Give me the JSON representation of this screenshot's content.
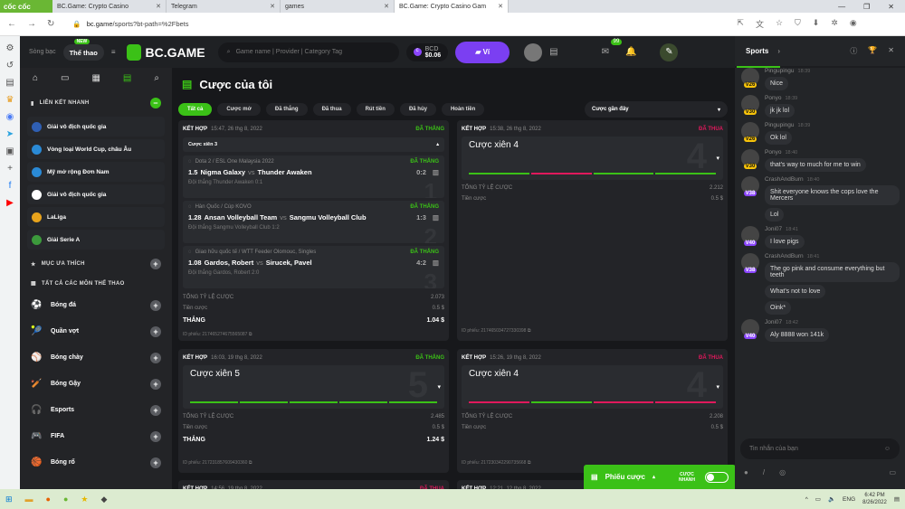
{
  "browser": {
    "brand": "cốc cốc",
    "tabs": [
      {
        "title": "BC.Game: Crypto Casino",
        "active": false
      },
      {
        "title": "Telegram",
        "active": false
      },
      {
        "title": "games",
        "active": false
      },
      {
        "title": "BC.Game: Crypto Casino Gam",
        "active": true
      }
    ],
    "url_host": "bc.game",
    "url_path": "/sports?bt-path=%2Fbets"
  },
  "topbar": {
    "casino": "Sòng bạc",
    "sports": "Thể thao",
    "new_badge": "NEW",
    "logo": "BC.GAME",
    "search_placeholder": "Game name | Provider | Category Tag",
    "currency": "BCD",
    "balance": "$0.06",
    "wallet": "Ví",
    "messages_badge": "99"
  },
  "sidebar": {
    "quick_links_title": "LIÊN KẾT NHANH",
    "quick_links": [
      {
        "label": "Giải vô địch quốc gia",
        "color": "#2f5fb3"
      },
      {
        "label": "Vòng loại World Cup, châu Âu",
        "color": "#2a8ad6"
      },
      {
        "label": "Mỹ mở rộng Đơn Nam",
        "color": "#2a8ad6"
      },
      {
        "label": "Giải vô địch quốc gia",
        "color": "#ffffff"
      },
      {
        "label": "LaLiga",
        "color": "#e8a31c"
      },
      {
        "label": "Giải Serie A",
        "color": "#3c9a3c"
      }
    ],
    "favorites_title": "MỤC ƯA THÍCH",
    "all_sports_title": "TẤT CẢ CÁC MÔN THỂ THAO",
    "sports": [
      {
        "label": "Bóng đá",
        "icon": "⚽"
      },
      {
        "label": "Quần vợt",
        "icon": "🎾"
      },
      {
        "label": "Bóng chày",
        "icon": "⚾"
      },
      {
        "label": "Bóng Gậy",
        "icon": "🏏"
      },
      {
        "label": "Esports",
        "icon": "🎧"
      },
      {
        "label": "FIFA",
        "icon": "🎮"
      },
      {
        "label": "Bóng rổ",
        "icon": "🏀"
      }
    ]
  },
  "main": {
    "title": "Cược của tôi",
    "filters": [
      "Tất cả",
      "Cược mở",
      "Đã thắng",
      "Đã thua",
      "Rút tiền",
      "Đã hủy",
      "Hoàn tiền"
    ],
    "sort": "Cược gần đây",
    "labels": {
      "combo": "KẾT HỢP",
      "total_odds": "TỔNG TỶ LỆ CƯỢC",
      "stake": "Tiền cược",
      "win": "THẮNG",
      "ticket_id": "ID phiếu:"
    },
    "card1": {
      "date": "15:47, 26 thg 8, 2022",
      "status": "ĐÃ THẮNG",
      "parlay": "Cược xiên 3",
      "legs": [
        {
          "league": "Dota 2 / ESL One Malaysia 2022",
          "status": "ĐÃ THẮNG",
          "odds": "1.5",
          "home": "Nigma Galaxy",
          "vs": "vs",
          "away": "Thunder Awaken",
          "score": "0:2",
          "pick": "Đội thắng Thunder Awaken  0:1",
          "num": "1"
        },
        {
          "league": "Hàn Quốc / Cúp KOVO",
          "status": "ĐÃ THẮNG",
          "odds": "1.28",
          "home": "Ansan Volleyball Team",
          "vs": "vs",
          "away": "Sangmu Volleyball Club",
          "score": "1:3",
          "pick": "Đội thắng Sangmu Volleyball Club  1:2",
          "num": "2"
        },
        {
          "league": "Giao hữu quốc tế / WTT Feeder Olomouc, Singles",
          "status": "ĐÃ THẮNG",
          "odds": "1.08",
          "home": "Gardos, Robert",
          "vs": "vs",
          "away": "Sirucek, Pavel",
          "score": "4:2",
          "pick": "Đội thắng Gardos, Robert  2:0",
          "num": "3"
        }
      ],
      "total_odds": "2.073",
      "stake": "0.5 $",
      "win": "1.04 $",
      "id": "217465274675565087"
    },
    "card2": {
      "date": "15:38, 26 thg 8, 2022",
      "status": "ĐÃ THUA",
      "parlay": "Cược xiên 4",
      "num": "4",
      "legs": [
        "won",
        "lost",
        "won",
        "won"
      ],
      "total_odds": "2.212",
      "stake": "0.5 $",
      "id": "217465034727330398"
    },
    "card3": {
      "date": "16:03, 19 thg 8, 2022",
      "status": "ĐÃ THẮNG",
      "parlay": "Cược xiên 5",
      "num": "5",
      "legs": [
        "won",
        "won",
        "won",
        "won",
        "won"
      ],
      "total_odds": "2.485",
      "stake": "0.5 $",
      "win": "1.24 $",
      "id": "217231857609430360"
    },
    "card4": {
      "date": "15:26, 19 thg 8, 2022",
      "status": "ĐÃ THUA",
      "parlay": "Cược xiên 4",
      "num": "4",
      "legs": [
        "lost",
        "won",
        "lost",
        "lost"
      ],
      "total_odds": "2.208",
      "stake": "0.5 $",
      "id": "217230342290735668"
    },
    "card5": {
      "date": "14:56, 19 thg 8, 2022",
      "status": "ĐÃ THUA"
    },
    "card6": {
      "date": "12:21, 12 thg 8, 2022"
    }
  },
  "betslip": {
    "label": "Phiếu cược",
    "quick": "CƯỢC NHANH"
  },
  "chat": {
    "title": "Sports",
    "placeholder": "Tin nhắn của bạn",
    "messages": [
      {
        "user": "Pingupingu",
        "time": "18:39",
        "level": "V26",
        "tier": "gold",
        "texts": [
          "Nice"
        ]
      },
      {
        "user": "Ponyo",
        "time": "18:39",
        "level": "V30",
        "tier": "gold",
        "texts": [
          "jk jk lol"
        ]
      },
      {
        "user": "Pingupingu",
        "time": "18:39",
        "level": "V26",
        "tier": "gold",
        "texts": [
          "Ok lol"
        ]
      },
      {
        "user": "Ponyo",
        "time": "18:40",
        "level": "V30",
        "tier": "gold",
        "texts": [
          "that's way to much for me to win"
        ]
      },
      {
        "user": "CrashAndBurn",
        "time": "18:40",
        "level": "V38",
        "tier": "pur",
        "texts": [
          "Shit everyone knows the cops love the Mercers",
          "Lol"
        ]
      },
      {
        "user": "Joni07",
        "time": "18:41",
        "level": "V40",
        "tier": "pur",
        "texts": [
          "I love pigs"
        ]
      },
      {
        "user": "CrashAndBurn",
        "time": "18:41",
        "level": "V38",
        "tier": "pur",
        "texts": [
          "The go pink and consume everything but teeth",
          "What's not to love",
          "Oink*"
        ]
      },
      {
        "user": "Joni07",
        "time": "18:42",
        "level": "V40",
        "tier": "pur",
        "texts": [
          "Aly 8888 won 141k"
        ]
      }
    ]
  },
  "taskbar": {
    "lang": "ENG",
    "time": "6:42 PM",
    "date": "8/26/2022"
  },
  "colors": {
    "accent": "#3bc117",
    "lost": "#e0195c",
    "wallet": "#7b3ff2"
  }
}
